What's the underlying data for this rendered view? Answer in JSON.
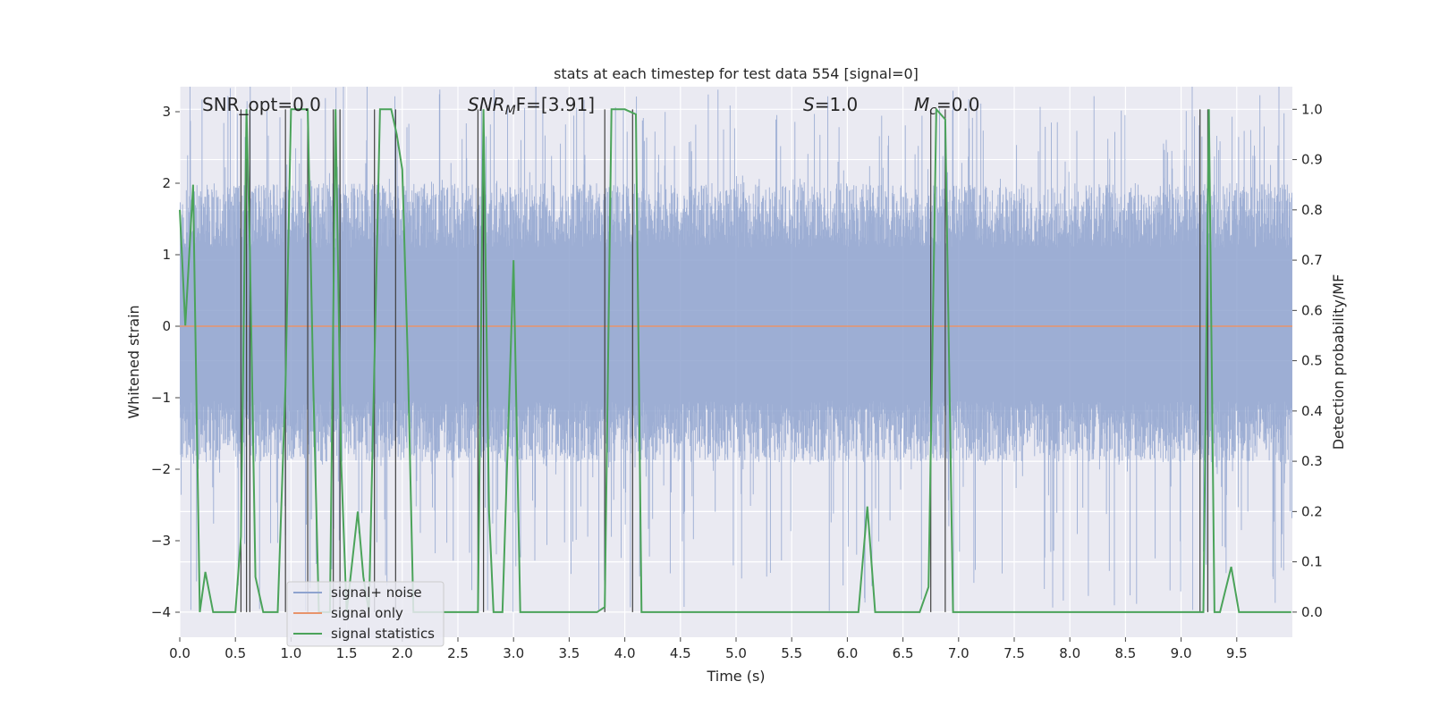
{
  "chart_data": {
    "type": "line",
    "title": "stats at each timestep for test data 554 [signal=0]",
    "xlabel": "Time (s)",
    "ylabel": "Whitened strain",
    "ylabel_right": "Detection probability/MF",
    "xlim": [
      0.0,
      10.0
    ],
    "ylim": [
      -4.35,
      3.35
    ],
    "ylim_right": [
      -0.05,
      1.045
    ],
    "grid": true,
    "legend_placement": "lower-left",
    "xticks": [
      "0.0",
      "0.5",
      "1.0",
      "1.5",
      "2.0",
      "2.5",
      "3.0",
      "3.5",
      "4.0",
      "4.5",
      "5.0",
      "5.5",
      "6.0",
      "6.5",
      "7.0",
      "7.5",
      "8.0",
      "8.5",
      "9.0",
      "9.5"
    ],
    "yticks": [
      "3",
      "2",
      "1",
      "0",
      "−1",
      "−2",
      "−3",
      "−4"
    ],
    "yticks_right": [
      "1.0",
      "0.9",
      "0.8",
      "0.7",
      "0.6",
      "0.5",
      "0.4",
      "0.3",
      "0.2",
      "0.1",
      "0.0"
    ],
    "annotations": {
      "snr_opt": "SNR_opt=0.0",
      "snr_mf_label": "SNR",
      "snr_mf_sub": "M",
      "snr_mf_tail": "F=[3.91]",
      "s_label": "S",
      "s_tail": "=1.0",
      "mc_label": "M",
      "mc_sub": "c",
      "mc_tail": "=0.0"
    },
    "series": [
      {
        "name": "signal+ noise",
        "color": "#8fa3cf",
        "kind": "noise",
        "envelope_approx": {
          "typical_max": 2.0,
          "typical_min": -1.9,
          "peak_max": 3.4,
          "peak_min": -4.0
        }
      },
      {
        "name": "signal only",
        "color": "#e8946b",
        "kind": "line",
        "x": [
          0.0,
          10.0
        ],
        "y": [
          0.0,
          0.0
        ]
      },
      {
        "name": "signal statistics",
        "color": "#4ba35a",
        "axis": "right",
        "x": [
          0.0,
          0.05,
          0.12,
          0.18,
          0.23,
          0.3,
          0.5,
          0.55,
          0.6,
          0.63,
          0.68,
          0.75,
          0.88,
          0.95,
          1.0,
          1.15,
          1.2,
          1.25,
          1.35,
          1.4,
          1.45,
          1.5,
          1.6,
          1.65,
          1.7,
          1.8,
          1.9,
          1.95,
          2.0,
          2.05,
          2.1,
          2.6,
          2.68,
          2.73,
          2.78,
          2.82,
          2.9,
          3.0,
          3.06,
          3.2,
          3.75,
          3.82,
          3.88,
          4.0,
          4.1,
          4.15,
          6.1,
          6.18,
          6.25,
          6.3,
          6.65,
          6.73,
          6.8,
          6.88,
          6.95,
          7.0,
          7.1,
          7.12,
          9.15,
          9.2,
          9.25,
          9.3,
          9.35,
          9.45,
          9.52,
          9.99
        ],
        "y": [
          0.8,
          0.57,
          0.85,
          0.0,
          0.08,
          0.0,
          0.0,
          0.15,
          1.0,
          0.72,
          0.07,
          0.0,
          0.0,
          0.45,
          1.0,
          1.0,
          0.45,
          0.0,
          0.0,
          1.0,
          0.3,
          0.0,
          0.2,
          0.07,
          0.0,
          1.0,
          1.0,
          0.95,
          0.88,
          0.5,
          0.0,
          0.0,
          0.0,
          1.0,
          0.2,
          0.0,
          0.0,
          0.7,
          0.0,
          0.0,
          0.0,
          0.01,
          1.0,
          1.0,
          0.99,
          0.0,
          0.0,
          0.21,
          0.0,
          0.0,
          0.0,
          0.05,
          1.0,
          0.98,
          0.0,
          0.0,
          0.0,
          0.0,
          0.0,
          0.0,
          1.0,
          0.0,
          0.0,
          0.09,
          0.0,
          0.0
        ]
      }
    ],
    "markers": {
      "color": "#404040",
      "x": [
        0.55,
        0.6,
        0.63,
        0.95,
        1.15,
        1.38,
        1.44,
        1.75,
        1.94,
        2.68,
        2.73,
        3.82,
        4.07,
        6.75,
        6.88,
        9.17,
        9.24
      ]
    }
  }
}
